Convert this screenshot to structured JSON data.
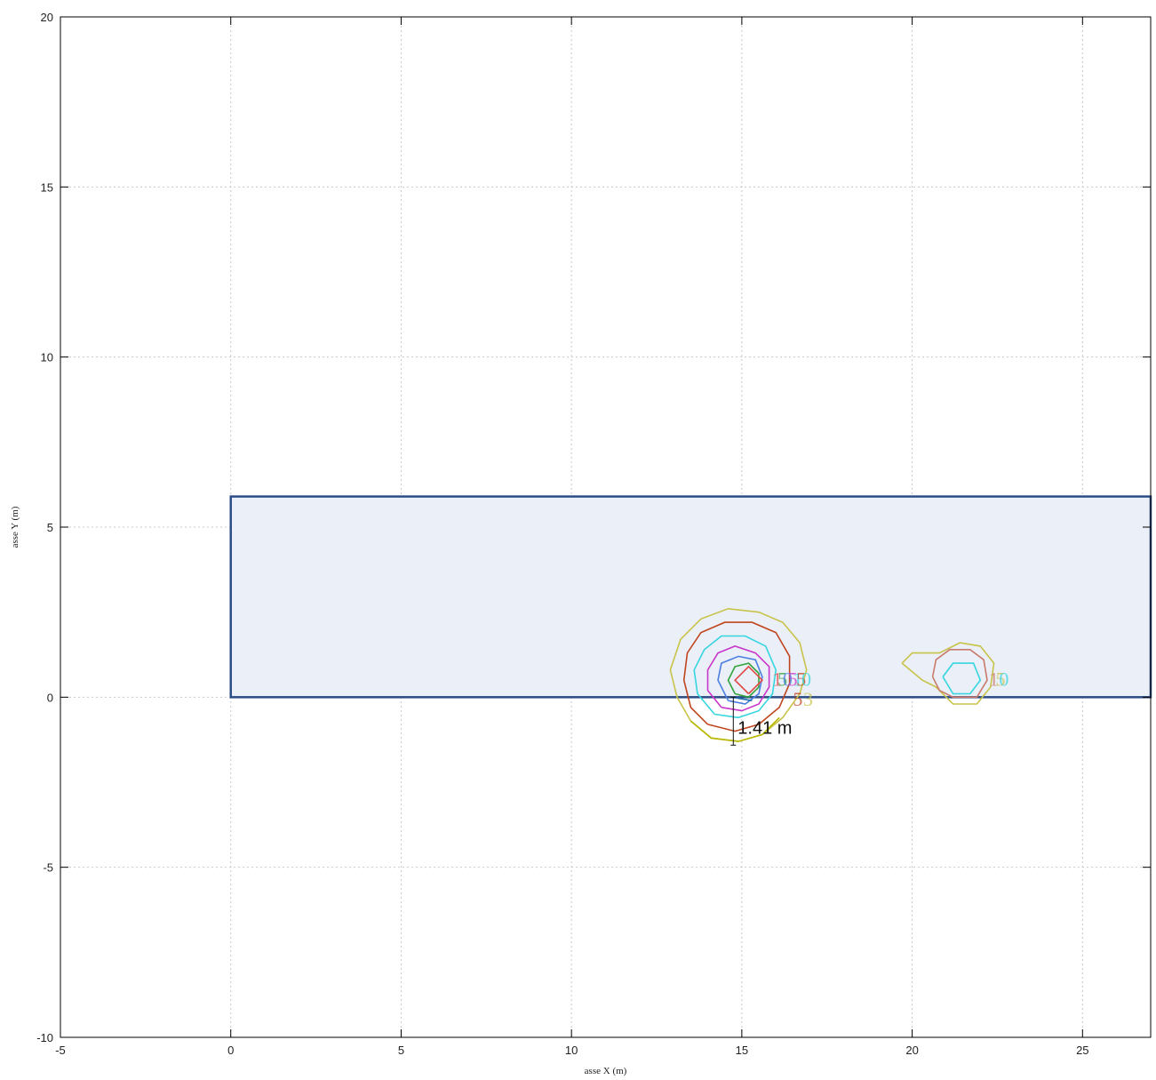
{
  "chart_data": {
    "type": "contour",
    "title": "",
    "xlabel": "asse X (m)",
    "ylabel": "asse Y (m)",
    "xlim": [
      -5,
      27
    ],
    "ylim": [
      -10,
      20
    ],
    "xticks": [
      -5,
      0,
      5,
      10,
      15,
      20,
      25
    ],
    "yticks": [
      -10,
      -5,
      0,
      5,
      10,
      15,
      20
    ],
    "grid": true,
    "colors": {
      "frame": "#000000",
      "grid": "#c8c8c8",
      "area_fill": "#eaeff8",
      "area_stroke": "#2b4c85"
    },
    "area": {
      "x0": 0,
      "y0": 0,
      "x1": 27,
      "y1": 5.9
    },
    "contours": [
      {
        "color": "#c9c34a",
        "points": [
          [
            14.1,
            -1.2
          ],
          [
            14.9,
            -1.3
          ],
          [
            15.6,
            -1.1
          ],
          [
            16.2,
            -0.6
          ],
          [
            16.7,
            0.1
          ],
          [
            16.9,
            0.8
          ],
          [
            16.7,
            1.6
          ],
          [
            16.2,
            2.2
          ],
          [
            15.5,
            2.5
          ],
          [
            14.6,
            2.6
          ],
          [
            13.8,
            2.3
          ],
          [
            13.2,
            1.7
          ],
          [
            12.9,
            0.8
          ],
          [
            13.1,
            0.0
          ],
          [
            13.5,
            -0.7
          ],
          [
            14.1,
            -1.2
          ]
        ]
      },
      {
        "color": "#b8b800",
        "points": [
          [
            13.5,
            -0.7
          ],
          [
            14.1,
            -1.2
          ],
          [
            14.9,
            -1.3
          ],
          [
            15.6,
            -1.1
          ],
          [
            16.1,
            -0.6
          ]
        ]
      },
      {
        "color": "#c0451e",
        "points": [
          [
            14.0,
            -0.8
          ],
          [
            14.8,
            -1.0
          ],
          [
            15.5,
            -0.8
          ],
          [
            16.1,
            -0.3
          ],
          [
            16.4,
            0.4
          ],
          [
            16.4,
            1.2
          ],
          [
            16.0,
            1.9
          ],
          [
            15.3,
            2.2
          ],
          [
            14.5,
            2.2
          ],
          [
            13.8,
            1.9
          ],
          [
            13.4,
            1.3
          ],
          [
            13.3,
            0.5
          ],
          [
            13.5,
            -0.3
          ],
          [
            14.0,
            -0.8
          ]
        ]
      },
      {
        "color": "#36d6e0",
        "points": [
          [
            14.2,
            -0.5
          ],
          [
            14.9,
            -0.6
          ],
          [
            15.5,
            -0.4
          ],
          [
            15.9,
            0.1
          ],
          [
            16.0,
            0.8
          ],
          [
            15.7,
            1.5
          ],
          [
            15.1,
            1.8
          ],
          [
            14.4,
            1.8
          ],
          [
            13.9,
            1.4
          ],
          [
            13.6,
            0.8
          ],
          [
            13.7,
            0.1
          ],
          [
            14.2,
            -0.5
          ]
        ]
      },
      {
        "color": "#c936c9",
        "points": [
          [
            14.4,
            -0.3
          ],
          [
            15.0,
            -0.4
          ],
          [
            15.5,
            -0.2
          ],
          [
            15.8,
            0.3
          ],
          [
            15.8,
            0.9
          ],
          [
            15.4,
            1.3
          ],
          [
            14.8,
            1.5
          ],
          [
            14.3,
            1.3
          ],
          [
            14.0,
            0.8
          ],
          [
            14.0,
            0.2
          ],
          [
            14.4,
            -0.3
          ]
        ]
      },
      {
        "color": "#4a7ee0",
        "points": [
          [
            14.6,
            -0.1
          ],
          [
            15.1,
            -0.2
          ],
          [
            15.5,
            0.1
          ],
          [
            15.6,
            0.6
          ],
          [
            15.4,
            1.1
          ],
          [
            14.9,
            1.2
          ],
          [
            14.4,
            1.0
          ],
          [
            14.3,
            0.5
          ],
          [
            14.6,
            -0.1
          ]
        ]
      },
      {
        "color": "#2fa33a",
        "points": [
          [
            14.8,
            0.1
          ],
          [
            15.2,
            0.0
          ],
          [
            15.5,
            0.3
          ],
          [
            15.5,
            0.7
          ],
          [
            15.2,
            1.0
          ],
          [
            14.8,
            0.9
          ],
          [
            14.6,
            0.5
          ],
          [
            14.8,
            0.1
          ]
        ]
      },
      {
        "color": "#e04a4a",
        "points": [
          [
            15.2,
            0.1
          ],
          [
            15.6,
            0.5
          ],
          [
            15.2,
            0.9
          ],
          [
            14.8,
            0.5
          ],
          [
            15.2,
            0.1
          ]
        ]
      },
      {
        "color": "#1f6fae",
        "points": [
          [
            14.7,
            0.0
          ],
          [
            15.3,
            -0.1
          ]
        ]
      },
      {
        "color": "#c9c34a",
        "points": [
          [
            19.7,
            1.0
          ],
          [
            20.0,
            1.3
          ],
          [
            20.8,
            1.3
          ],
          [
            21.4,
            1.6
          ],
          [
            22.0,
            1.5
          ],
          [
            22.4,
            1.0
          ],
          [
            22.3,
            0.3
          ],
          [
            21.9,
            -0.2
          ],
          [
            21.2,
            -0.2
          ],
          [
            20.7,
            0.3
          ],
          [
            20.3,
            0.5
          ],
          [
            19.7,
            1.0
          ]
        ]
      },
      {
        "color": "#c97a6a",
        "points": [
          [
            20.6,
            0.6
          ],
          [
            20.7,
            1.1
          ],
          [
            21.1,
            1.4
          ],
          [
            21.7,
            1.4
          ],
          [
            22.1,
            1.1
          ],
          [
            22.2,
            0.5
          ],
          [
            21.9,
            0.0
          ],
          [
            21.2,
            0.0
          ],
          [
            20.8,
            0.2
          ],
          [
            20.6,
            0.6
          ]
        ]
      },
      {
        "color": "#36d6e0",
        "points": [
          [
            20.9,
            0.6
          ],
          [
            21.2,
            1.0
          ],
          [
            21.8,
            1.0
          ],
          [
            22.0,
            0.5
          ],
          [
            21.7,
            0.1
          ],
          [
            21.2,
            0.1
          ],
          [
            20.9,
            0.6
          ]
        ]
      }
    ],
    "contour_labels": [
      {
        "text": "1",
        "x": 15.9,
        "y": 0.55,
        "color": "#e04a4a"
      },
      {
        "text": "5",
        "x": 16.05,
        "y": 0.55,
        "color": "#2fa33a"
      },
      {
        "text": "0",
        "x": 16.2,
        "y": 0.55,
        "color": "#4a7ee0"
      },
      {
        "text": "5",
        "x": 16.35,
        "y": 0.55,
        "color": "#c936c9"
      },
      {
        "text": "1",
        "x": 16.5,
        "y": 0.55,
        "color": "#36d6e0"
      },
      {
        "text": "5",
        "x": 16.6,
        "y": 0.55,
        "color": "#c0451e"
      },
      {
        "text": "0",
        "x": 16.75,
        "y": 0.55,
        "color": "#36d6e0"
      },
      {
        "text": "5",
        "x": 16.5,
        "y": -0.05,
        "color": "#c0451e"
      },
      {
        "text": "3",
        "x": 16.8,
        "y": -0.05,
        "color": "#c9c34a"
      },
      {
        "text": "1",
        "x": 22.25,
        "y": 0.55,
        "color": "#c97a6a"
      },
      {
        "text": "5",
        "x": 22.45,
        "y": 0.55,
        "color": "#c9c34a"
      },
      {
        "text": "0",
        "x": 22.55,
        "y": 0.55,
        "color": "#36d6e0"
      }
    ],
    "dimension": {
      "label": "1.41 m",
      "x": 14.75,
      "y_top": 0.0,
      "y_bottom": -1.41,
      "color": "#111111"
    }
  }
}
